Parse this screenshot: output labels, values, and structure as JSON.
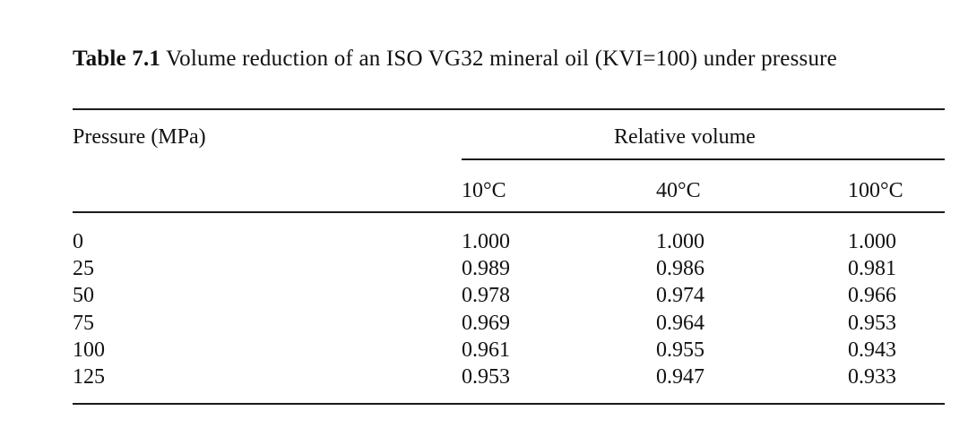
{
  "caption": {
    "label": "Table 7.1",
    "text": " Volume reduction of an ISO VG32 mineral oil (KVI=100) under pressure"
  },
  "header": {
    "pressure": "Pressure (MPa)",
    "relative_volume": "Relative volume",
    "columns": [
      "10°C",
      "40°C",
      "100°C"
    ]
  },
  "rows": [
    {
      "pressure": "0",
      "v10": "1.000",
      "v40": "1.000",
      "v100": "1.000"
    },
    {
      "pressure": "25",
      "v10": "0.989",
      "v40": "0.986",
      "v100": "0.981"
    },
    {
      "pressure": "50",
      "v10": "0.978",
      "v40": "0.974",
      "v100": "0.966"
    },
    {
      "pressure": "75",
      "v10": "0.969",
      "v40": "0.964",
      "v100": "0.953"
    },
    {
      "pressure": "100",
      "v10": "0.961",
      "v40": "0.955",
      "v100": "0.943"
    },
    {
      "pressure": "125",
      "v10": "0.953",
      "v40": "0.947",
      "v100": "0.933"
    }
  ]
}
